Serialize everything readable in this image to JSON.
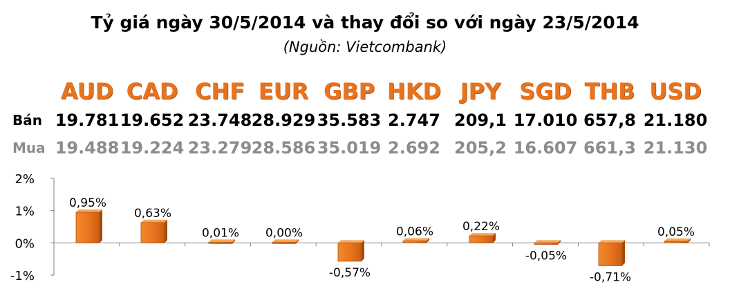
{
  "title": "Tỷ giá ngày 30/5/2014 và thay đổi so với ngày 23/5/2014",
  "subtitle": "(Nguồn: Vietcombank)",
  "rows": {
    "sell_label": "Bán",
    "buy_label": "Mua"
  },
  "colors": {
    "code": "#e8731e",
    "bar": "#e8731e",
    "buy_text": "#8c8c8c",
    "axis": "#7f7f7f"
  },
  "currencies": [
    {
      "code": "AUD",
      "sell": "19.781",
      "buy": "19.488"
    },
    {
      "code": "CAD",
      "sell": "19.652",
      "buy": "19.224"
    },
    {
      "code": "CHF",
      "sell": "23.748",
      "buy": "23.279"
    },
    {
      "code": "EUR",
      "sell": "28.929",
      "buy": "28.586"
    },
    {
      "code": "GBP",
      "sell": "35.583",
      "buy": "35.019"
    },
    {
      "code": "HKD",
      "sell": "2.747",
      "buy": "2.692"
    },
    {
      "code": "JPY",
      "sell": "209,1",
      "buy": "205,2"
    },
    {
      "code": "SGD",
      "sell": "17.010",
      "buy": "16.607"
    },
    {
      "code": "THB",
      "sell": "657,8",
      "buy": "661,3"
    },
    {
      "code": "USD",
      "sell": "21.180",
      "buy": "21.130"
    }
  ],
  "chart_data": {
    "type": "bar",
    "categories": [
      "AUD",
      "CAD",
      "CHF",
      "EUR",
      "GBP",
      "HKD",
      "JPY",
      "SGD",
      "THB",
      "USD"
    ],
    "values": [
      0.95,
      0.63,
      0.01,
      0.0,
      -0.57,
      0.06,
      0.22,
      -0.05,
      -0.71,
      0.05
    ],
    "data_labels": [
      "0,95%",
      "0,63%",
      "0,01%",
      "0,00%",
      "-0,57%",
      "0,06%",
      "0,22%",
      "-0,05%",
      "-0,71%",
      "0,05%"
    ],
    "ylim": [
      -1,
      2
    ],
    "yticks": [
      2,
      1,
      0,
      -1
    ],
    "ytick_labels": [
      "2%",
      "1%",
      "0%",
      "-1%"
    ],
    "grid": false,
    "legend": "none"
  }
}
